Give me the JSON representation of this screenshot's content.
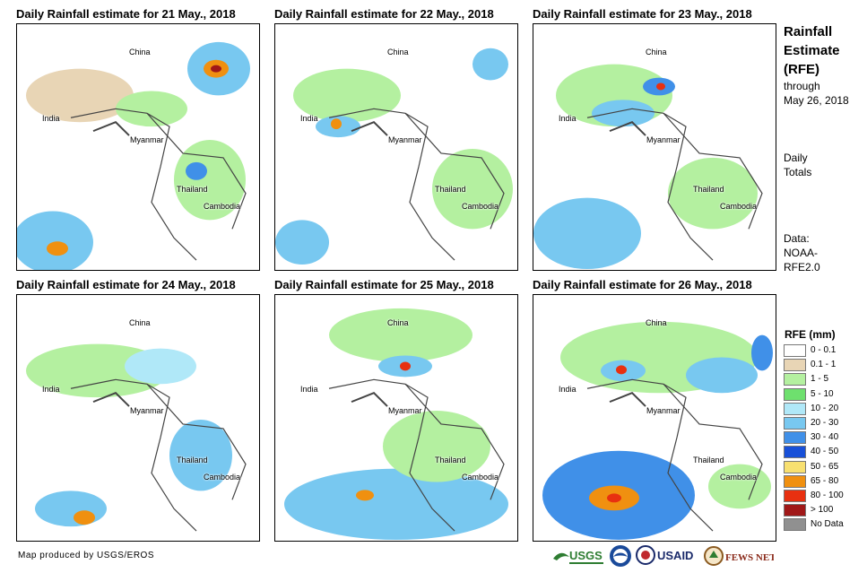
{
  "panels": [
    {
      "title": "Daily Rainfall estimate for 21 May., 2018"
    },
    {
      "title": "Daily Rainfall estimate for 22 May., 2018"
    },
    {
      "title": "Daily Rainfall estimate for 23 May., 2018"
    },
    {
      "title": "Daily Rainfall estimate for 24 May., 2018"
    },
    {
      "title": "Daily Rainfall estimate for 25 May., 2018"
    },
    {
      "title": "Daily Rainfall estimate for 26 May., 2018"
    }
  ],
  "map_labels": {
    "china": "China",
    "india": "India",
    "myanmar": "Myanmar",
    "thailand": "Thailand",
    "cambodia": "Cambodia"
  },
  "side": {
    "title_line1": "Rainfall",
    "title_line2": "Estimate",
    "title_line3": "(RFE)",
    "through": "through",
    "date": "May 26, 2018",
    "daily": "Daily",
    "totals": "Totals",
    "data_label": "Data:",
    "data_line1": "NOAA-",
    "data_line2": "RFE2.0"
  },
  "legend": {
    "title": "RFE (mm)",
    "items": [
      {
        "label": "0 - 0.1",
        "color": "#ffffff"
      },
      {
        "label": "0.1 - 1",
        "color": "#e8d5b5"
      },
      {
        "label": "1 - 5",
        "color": "#b4f0a0"
      },
      {
        "label": "5 - 10",
        "color": "#6ee06e"
      },
      {
        "label": "10 - 20",
        "color": "#b0e8f8"
      },
      {
        "label": "20 - 30",
        "color": "#78c8f0"
      },
      {
        "label": "30 - 40",
        "color": "#4090e8"
      },
      {
        "label": "40 - 50",
        "color": "#1850d8"
      },
      {
        "label": "50 - 65",
        "color": "#f8e070"
      },
      {
        "label": "65 - 80",
        "color": "#f09010"
      },
      {
        "label": "80 - 100",
        "color": "#e83010"
      },
      {
        "label": "> 100",
        "color": "#a01818"
      },
      {
        "label": "No Data",
        "color": "#909090"
      }
    ]
  },
  "credit": "Map produced by USGS/EROS",
  "logos": {
    "usgs": "USGS",
    "usaid": "USAID",
    "fewsnet": "FEWS NET"
  }
}
